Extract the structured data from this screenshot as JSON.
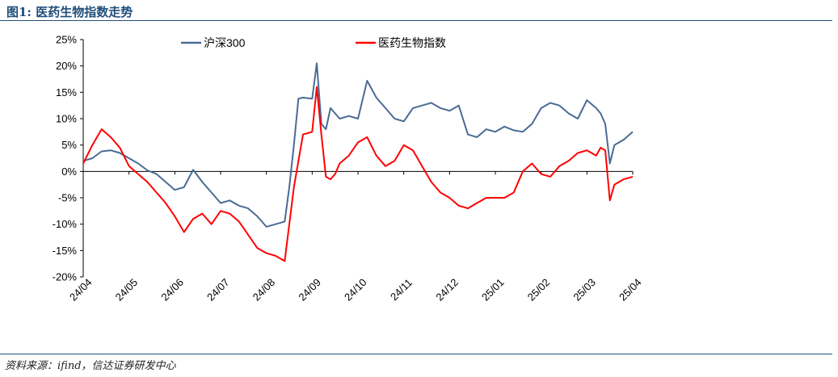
{
  "figure_title": "图1: 医药生物指数走势",
  "source": "资料来源：ifind，信达证券研发中心",
  "colors": {
    "title": "#1f4e79",
    "csi300": "#4a6b94",
    "pharma": "#ff0000",
    "axis": "#000000"
  },
  "chart_data": {
    "type": "line",
    "title": "",
    "xlabel": "",
    "ylabel": "",
    "ylim": [
      -20,
      25
    ],
    "yticks": [
      25,
      20,
      15,
      10,
      5,
      0,
      -5,
      -10,
      -15,
      -20
    ],
    "ytick_labels": [
      "25%",
      "20%",
      "15%",
      "10%",
      "5%",
      "0%",
      "-5%",
      "-10%",
      "-15%",
      "-20%"
    ],
    "x_tick_labels": [
      "24/04",
      "24/05",
      "24/06",
      "24/07",
      "24/08",
      "24/09",
      "24/10",
      "24/11",
      "24/12",
      "25/01",
      "25/02",
      "25/03",
      "25/04"
    ],
    "legend_position": "top",
    "x": [
      0,
      0.2,
      0.4,
      0.6,
      0.8,
      1.0,
      1.2,
      1.4,
      1.6,
      1.8,
      2.0,
      2.2,
      2.4,
      2.6,
      2.8,
      3.0,
      3.2,
      3.4,
      3.6,
      3.8,
      4.0,
      4.2,
      4.4,
      4.5,
      4.6,
      4.7,
      4.8,
      5.0,
      5.1,
      5.2,
      5.3,
      5.4,
      5.5,
      5.6,
      5.8,
      6.0,
      6.2,
      6.4,
      6.6,
      6.8,
      7.0,
      7.2,
      7.4,
      7.6,
      7.8,
      8.0,
      8.2,
      8.4,
      8.6,
      8.8,
      9.0,
      9.2,
      9.4,
      9.6,
      9.8,
      10.0,
      10.2,
      10.4,
      10.6,
      10.8,
      11.0,
      11.2,
      11.3,
      11.4,
      11.5,
      11.6,
      11.8,
      12.0
    ],
    "series": [
      {
        "name": "沪深300",
        "color": "#4a6b94",
        "values": [
          2,
          2.5,
          3.8,
          4.0,
          3.5,
          2.5,
          1.5,
          0.2,
          -0.5,
          -2,
          -3.5,
          -3,
          0.3,
          -2,
          -4,
          -6,
          -5.5,
          -6.5,
          -7,
          -8.5,
          -10.5,
          -10,
          -9.5,
          -3,
          5,
          13.8,
          14,
          13.8,
          20.5,
          9,
          8,
          12,
          11,
          10,
          10.5,
          10,
          17.2,
          14,
          12,
          10,
          9.5,
          12,
          12.5,
          13,
          12,
          11.5,
          12.5,
          7,
          6.5,
          8.0,
          7.5,
          8.5,
          7.8,
          7.5,
          9,
          12,
          13,
          12.5,
          11,
          10,
          13.5,
          12,
          11,
          9,
          1.5,
          5,
          6,
          7.5
        ]
      },
      {
        "name": "医药生物指数",
        "color": "#ff0000",
        "values": [
          1.5,
          5,
          8,
          6.5,
          4.5,
          1,
          -0.5,
          -2,
          -4,
          -6,
          -8.5,
          -11.5,
          -9,
          -8,
          -10,
          -7.5,
          -8,
          -9.5,
          -12,
          -14.5,
          -15.5,
          -16,
          -17,
          -10,
          -3,
          2,
          7,
          7.5,
          16,
          7,
          -1,
          -1.5,
          -0.5,
          1.5,
          3,
          5.5,
          6.5,
          3,
          1,
          2,
          5,
          4,
          1,
          -2,
          -4,
          -5,
          -6.5,
          -7,
          -6,
          -5,
          -5,
          -5,
          -4,
          0,
          1.5,
          -0.5,
          -1,
          1,
          2,
          3.5,
          4,
          3,
          4.5,
          4,
          -5.5,
          -2.5,
          -1.5,
          -1
        ]
      }
    ]
  },
  "legend": [
    {
      "label": "沪深300",
      "color": "#4a6b94"
    },
    {
      "label": "医药生物指数",
      "color": "#ff0000"
    }
  ]
}
